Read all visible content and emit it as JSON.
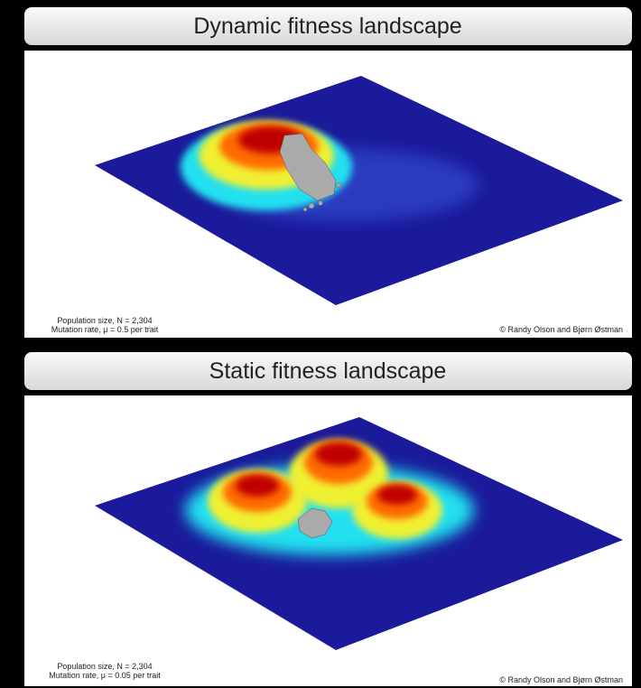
{
  "panels": [
    {
      "title": "Dynamic fitness landscape",
      "caption_lines": [
        "Population size, N = 2,304",
        "Mutation rate, μ = 0.5 per trait"
      ],
      "credit": "© Randy Olson and Bjørn Østman"
    },
    {
      "title": "Static fitness landscape",
      "caption_lines": [
        "Population size, N = 2,304",
        "Mutation rate, μ = 0.05 per trait"
      ],
      "credit": "© Randy Olson and Bjørn Østman"
    }
  ]
}
